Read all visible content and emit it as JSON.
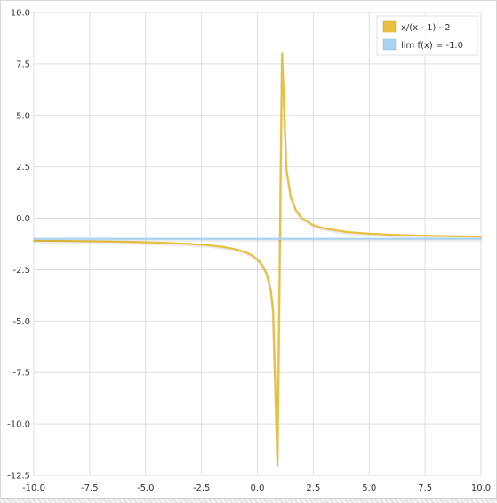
{
  "chart_data": {
    "type": "line",
    "title": "",
    "xlabel": "",
    "ylabel": "",
    "xlim": [
      -10,
      10
    ],
    "ylim": [
      -12.5,
      10
    ],
    "grid": true,
    "legend_placement": "top-right",
    "x_ticks": [
      "-10.0",
      "-7.5",
      "-5.0",
      "-2.5",
      "0.0",
      "2.5",
      "5.0",
      "7.5",
      "10.0"
    ],
    "y_ticks": [
      "10.0",
      "7.5",
      "5.0",
      "2.5",
      "0.0",
      "-2.5",
      "-5.0",
      "-7.5",
      "-10.0",
      "-12.5"
    ],
    "series": [
      {
        "name": "x/(x - 1) - 2",
        "color": "#e8c040",
        "points": [
          [
            -10,
            -1.09
          ],
          [
            -9,
            -1.1
          ],
          [
            -8,
            -1.111
          ],
          [
            -7,
            -1.125
          ],
          [
            -6,
            -1.143
          ],
          [
            -5,
            -1.167
          ],
          [
            -4,
            -1.2
          ],
          [
            -3,
            -1.25
          ],
          [
            -2.5,
            -1.286
          ],
          [
            -2,
            -1.333
          ],
          [
            -1.5,
            -1.4
          ],
          [
            -1,
            -1.5
          ],
          [
            -0.5,
            -1.667
          ],
          [
            -0.25,
            -1.8
          ],
          [
            0,
            -2
          ],
          [
            0.2,
            -2.25
          ],
          [
            0.4,
            -2.667
          ],
          [
            0.6,
            -3.5
          ],
          [
            0.7,
            -4.5
          ],
          [
            0.9,
            -12
          ],
          [
            1.1,
            8
          ],
          [
            1.3,
            2.333
          ],
          [
            1.5,
            1
          ],
          [
            1.75,
            0.333
          ],
          [
            2,
            0
          ],
          [
            2.5,
            -0.333
          ],
          [
            3,
            -0.5
          ],
          [
            4,
            -0.667
          ],
          [
            5,
            -0.75
          ],
          [
            6,
            -0.8
          ],
          [
            7,
            -0.833
          ],
          [
            8,
            -0.857
          ],
          [
            9,
            -0.875
          ],
          [
            10,
            -0.889
          ]
        ]
      },
      {
        "name": "lim f(x) = -1.0",
        "color": "#a9d2f0",
        "points": [
          [
            -10,
            -1
          ],
          [
            10,
            -1
          ]
        ]
      }
    ]
  }
}
